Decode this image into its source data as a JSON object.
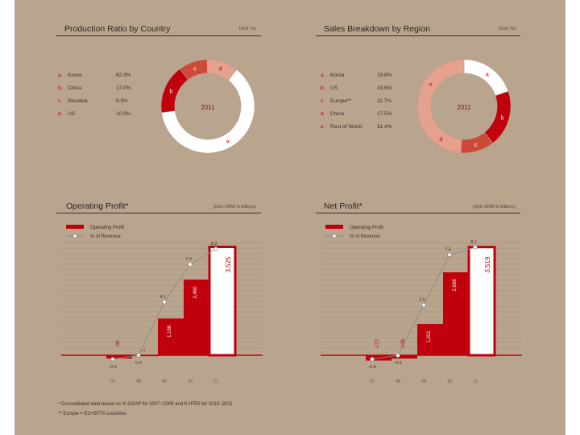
{
  "production": {
    "title": "Production Ratio by Country",
    "unit": "(Unit: %)",
    "center_label": "2011",
    "items": [
      {
        "letter": "a.",
        "name": "Korea",
        "value": "62.3%",
        "slice": "a"
      },
      {
        "letter": "b.",
        "name": "China",
        "value": "17.0%",
        "slice": "b"
      },
      {
        "letter": "c.",
        "name": "Slovakia",
        "value": "9.9%",
        "slice": "c"
      },
      {
        "letter": "d.",
        "name": "US",
        "value": "10.8%",
        "slice": "d"
      }
    ]
  },
  "sales": {
    "title": "Sales Breakdown by Region",
    "unit": "(Unit: %)",
    "center_label": "2011",
    "items": [
      {
        "letter": "a.",
        "name": "Korea",
        "value": "19.8%",
        "slice": "a"
      },
      {
        "letter": "b.",
        "name": "US",
        "value": "19.6%",
        "slice": "b"
      },
      {
        "letter": "c.",
        "name": "Europe**",
        "value": "11.7%",
        "slice": "c"
      },
      {
        "letter": "d.",
        "name": "China",
        "value": "17.5%",
        "slice": "d"
      },
      {
        "letter": "e.",
        "name": "Rest of World",
        "value": "31.4%",
        "slice": "e"
      }
    ]
  },
  "operating": {
    "title": "Operating Profit*",
    "unit": "(Unit: KRW in billions)",
    "legend_bar": "Operating Profit",
    "legend_line": "% of Revenue"
  },
  "net": {
    "title": "Net Profit*",
    "unit": "(Unit: KRW in billions)",
    "legend_bar": "Operating Profit",
    "legend_line": "% of Revenue"
  },
  "footnotes": {
    "line1": "* Consolidated data based on K-GAAP for 2007~2009 and K-IFRS for 2010~2011",
    "line2": "** Europe = EU+EFTA countries"
  },
  "colors": {
    "background": "#b9a48d",
    "red": "#c0000c",
    "red_mid": "#cd4a3a",
    "salmon": "#e6a08e",
    "white": "#ffffff",
    "line": "#8c8c8c"
  },
  "chart_data": [
    {
      "type": "pie",
      "title": "Production Ratio by Country",
      "unit": "%",
      "year": "2011",
      "slices": [
        {
          "label": "a",
          "name": "Korea",
          "value": 62.3,
          "color": "#ffffff"
        },
        {
          "label": "b",
          "name": "China",
          "value": 17.0,
          "color": "#c0000c"
        },
        {
          "label": "c",
          "name": "Slovakia",
          "value": 9.9,
          "color": "#cd4a3a"
        },
        {
          "label": "d",
          "name": "US",
          "value": 10.8,
          "color": "#e6a08e"
        }
      ]
    },
    {
      "type": "pie",
      "title": "Sales Breakdown by Region",
      "unit": "%",
      "year": "2011",
      "slices": [
        {
          "label": "a",
          "name": "Korea",
          "value": 19.8,
          "color": "#ffffff"
        },
        {
          "label": "b",
          "name": "US",
          "value": 19.6,
          "color": "#c0000c"
        },
        {
          "label": "c",
          "name": "Europe**",
          "value": 11.7,
          "color": "#cd4a3a"
        },
        {
          "label": "d",
          "name": "China",
          "value": 17.5,
          "color": "#e6a08e"
        },
        {
          "label": "e",
          "name": "Rest of World",
          "value": 31.4,
          "color": "#e6a08e"
        }
      ]
    },
    {
      "type": "bar",
      "title": "Operating Profit*",
      "unit": "KRW in billions",
      "categories": [
        "07",
        "08",
        "09",
        "10",
        "11"
      ],
      "values": [
        -58,
        1,
        1196,
        2460,
        3525
      ],
      "value_labels": [
        "-58",
        "1",
        "1,196",
        "2,460",
        "3,525"
      ],
      "ylim": [
        -100,
        3800
      ],
      "line_series": {
        "name": "% of Revenue",
        "values": [
          -0.3,
          0.0,
          4.1,
          7.0,
          8.2
        ],
        "labels": [
          "-0.3",
          "0.0",
          "4.1",
          "7.0",
          "8.2"
        ],
        "ylim": [
          -0.5,
          9.0
        ]
      }
    },
    {
      "type": "bar",
      "title": "Net Profit*",
      "unit": "KRW in billions",
      "categories": [
        "07",
        "08",
        "09",
        "10",
        "11"
      ],
      "values": [
        -172,
        -106,
        1021,
        2698,
        3519
      ],
      "value_labels": [
        "-172",
        "-106",
        "1,021",
        "2,698",
        "3,519"
      ],
      "ylim": [
        -200,
        3800
      ],
      "line_series": {
        "name": "% of Revenue",
        "values": [
          -0.8,
          -0.5,
          3.5,
          7.5,
          8.1
        ],
        "labels": [
          "-0.8",
          "-0.5",
          "3.5",
          "7.5",
          "8.1"
        ],
        "ylim": [
          -1.0,
          8.8
        ]
      }
    }
  ]
}
